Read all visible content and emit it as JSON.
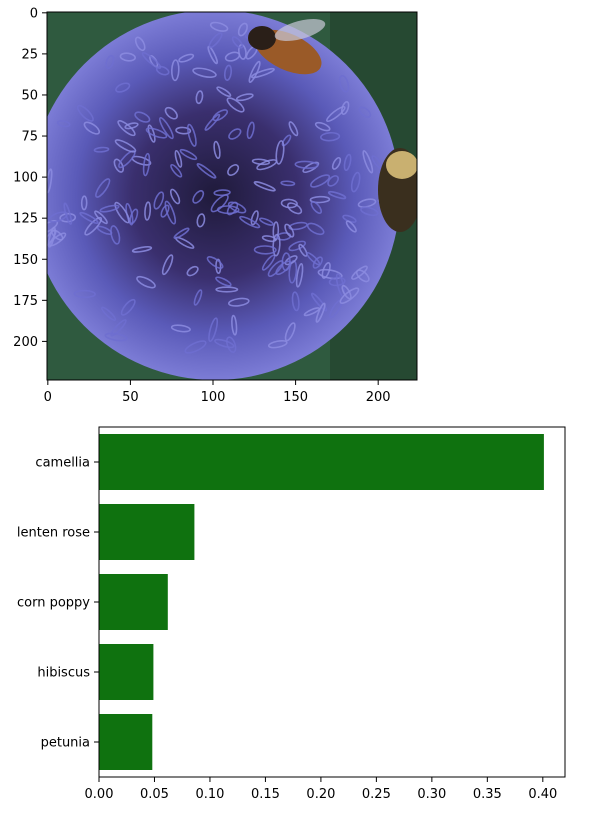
{
  "image_panel": {
    "image_description": "purple globe thistle flower with bees",
    "x_ticks": [
      0,
      50,
      100,
      150,
      200
    ],
    "y_ticks": [
      0,
      25,
      50,
      75,
      100,
      125,
      150,
      175,
      200
    ],
    "extent": [
      0,
      224
    ],
    "colors": {
      "background": "#2f5a3f",
      "petal": "#6f6fd0",
      "petal_dark": "#3a2f6e",
      "center": "#1f1a3a",
      "bee": "#9a5a28"
    }
  },
  "chart_data": {
    "type": "bar",
    "orientation": "horizontal",
    "categories": [
      "camellia",
      "lenten rose",
      "corn poppy",
      "hibiscus",
      "petunia"
    ],
    "values": [
      0.401,
      0.086,
      0.062,
      0.049,
      0.048
    ],
    "xlim": [
      0,
      0.42
    ],
    "x_ticks": [
      0.0,
      0.05,
      0.1,
      0.15,
      0.2,
      0.25,
      0.3,
      0.35,
      0.4
    ],
    "x_tick_labels": [
      "0.00",
      "0.05",
      "0.10",
      "0.15",
      "0.20",
      "0.25",
      "0.30",
      "0.35",
      "0.40"
    ],
    "bar_color": "#0f720f",
    "title": "",
    "xlabel": "",
    "ylabel": ""
  }
}
